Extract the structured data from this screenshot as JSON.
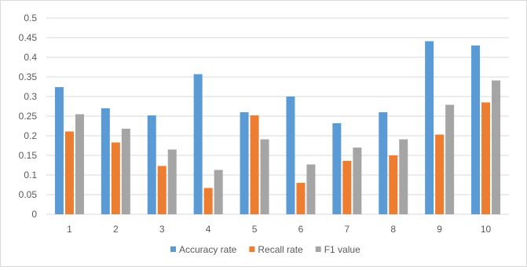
{
  "chart_data": {
    "type": "bar",
    "categories": [
      "1",
      "2",
      "3",
      "4",
      "5",
      "6",
      "7",
      "8",
      "9",
      "10"
    ],
    "series": [
      {
        "name": "Accuracy rate",
        "color": "#5B9BD5",
        "values": [
          0.324,
          0.27,
          0.252,
          0.357,
          0.26,
          0.3,
          0.232,
          0.26,
          0.441,
          0.43
        ]
      },
      {
        "name": "Recall rate",
        "color": "#ED7D31",
        "values": [
          0.211,
          0.183,
          0.123,
          0.067,
          0.252,
          0.08,
          0.136,
          0.15,
          0.203,
          0.285
        ]
      },
      {
        "name": "F1 value",
        "color": "#A5A5A5",
        "values": [
          0.255,
          0.218,
          0.165,
          0.113,
          0.191,
          0.127,
          0.17,
          0.191,
          0.279,
          0.341
        ]
      }
    ],
    "y_ticks": [
      "0",
      "0.05",
      "0.1",
      "0.15",
      "0.2",
      "0.25",
      "0.3",
      "0.35",
      "0.4",
      "0.45",
      "0.5"
    ],
    "ylim": [
      0,
      0.5
    ],
    "grid": true,
    "legend_position": "bottom",
    "title": "",
    "xlabel": "",
    "ylabel": ""
  }
}
